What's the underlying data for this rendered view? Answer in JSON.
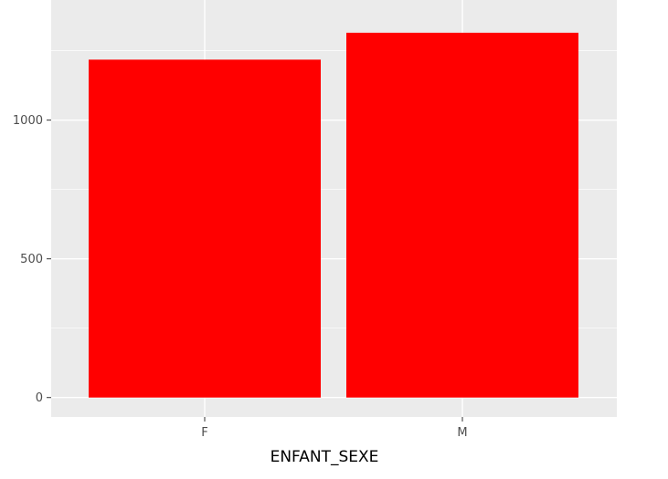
{
  "chart_data": {
    "type": "bar",
    "categories": [
      "F",
      "M"
    ],
    "values": [
      1218,
      1315
    ],
    "xlabel": "ENFANT_SEXE",
    "ylabel": "",
    "ylim": [
      -60,
      1400
    ],
    "yticks": [
      0,
      500,
      1000
    ],
    "grid": true,
    "bar_color": "#ff0000",
    "panel_color": "#ebebeb",
    "grid_color": "#ffffff"
  }
}
